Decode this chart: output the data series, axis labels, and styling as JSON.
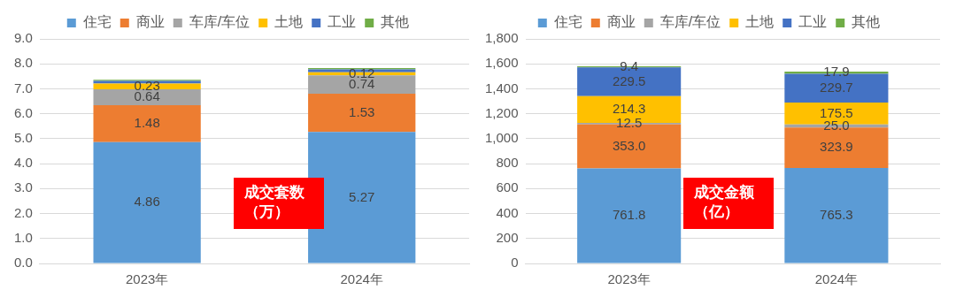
{
  "chart_data": [
    {
      "type": "bar",
      "stacked": true,
      "categories": [
        "2023年",
        "2024年"
      ],
      "series": [
        {
          "name": "住宅",
          "color": "#5b9bd5",
          "values": [
            4.86,
            5.27
          ],
          "value_labels": [
            "4.86",
            "5.27"
          ]
        },
        {
          "name": "商业",
          "color": "#ed7d31",
          "values": [
            1.48,
            1.53
          ],
          "value_labels": [
            "1.48",
            "1.53"
          ]
        },
        {
          "name": "车库/车位",
          "color": "#a5a5a5",
          "values": [
            0.64,
            0.74
          ],
          "value_labels": [
            "0.64",
            "0.74"
          ]
        },
        {
          "name": "土地",
          "color": "#ffc000",
          "values": [
            0.23,
            0.12
          ],
          "value_labels": [
            "0.23",
            "0.12"
          ]
        },
        {
          "name": "工业",
          "color": "#4472c4",
          "values": [
            0.11,
            0.12
          ],
          "value_labels": [
            null,
            null
          ]
        },
        {
          "name": "其他",
          "color": "#70ad47",
          "values": [
            0.04,
            0.05
          ],
          "value_labels": [
            null,
            null
          ]
        }
      ],
      "ylim": [
        0,
        9
      ],
      "yticks": [
        {
          "value": 0,
          "label": "0.0"
        },
        {
          "value": 1,
          "label": "1.0"
        },
        {
          "value": 2,
          "label": "2.0"
        },
        {
          "value": 3,
          "label": "3.0"
        },
        {
          "value": 4,
          "label": "4.0"
        },
        {
          "value": 5,
          "label": "5.0"
        },
        {
          "value": 6,
          "label": "6.0"
        },
        {
          "value": 7,
          "label": "7.0"
        },
        {
          "value": 8,
          "label": "8.0"
        },
        {
          "value": 9,
          "label": "9.0"
        }
      ],
      "grid": "y",
      "legend": "top",
      "annotations": [
        "成交套数（万）"
      ]
    },
    {
      "type": "bar",
      "stacked": true,
      "categories": [
        "2023年",
        "2024年"
      ],
      "series": [
        {
          "name": "住宅",
          "color": "#5b9bd5",
          "values": [
            761.8,
            765.3
          ],
          "value_labels": [
            "761.8",
            "765.3"
          ]
        },
        {
          "name": "商业",
          "color": "#ed7d31",
          "values": [
            353.0,
            323.9
          ],
          "value_labels": [
            "353.0",
            "323.9"
          ]
        },
        {
          "name": "车库/车位",
          "color": "#a5a5a5",
          "values": [
            12.5,
            25.0
          ],
          "value_labels": [
            "12.5",
            "25.0"
          ]
        },
        {
          "name": "土地",
          "color": "#ffc000",
          "values": [
            214.3,
            175.5
          ],
          "value_labels": [
            "214.3",
            "175.5"
          ]
        },
        {
          "name": "工业",
          "color": "#4472c4",
          "values": [
            229.5,
            229.7
          ],
          "value_labels": [
            "229.5",
            "229.7"
          ]
        },
        {
          "name": "其他",
          "color": "#70ad47",
          "values": [
            9.4,
            17.9
          ],
          "value_labels": [
            "9.4",
            "17.9"
          ]
        }
      ],
      "ylim": [
        0,
        1800
      ],
      "yticks": [
        0,
        200,
        400,
        600,
        800,
        {
          "value": 1000,
          "label": "1,000"
        },
        {
          "value": 1200,
          "label": "1,200"
        },
        {
          "value": 1400,
          "label": "1,400"
        },
        {
          "value": 1600,
          "label": "1,600"
        },
        {
          "value": 1800,
          "label": "1,800"
        }
      ],
      "grid": "y",
      "legend": "top",
      "annotations": [
        "成交金额（亿）"
      ]
    }
  ]
}
